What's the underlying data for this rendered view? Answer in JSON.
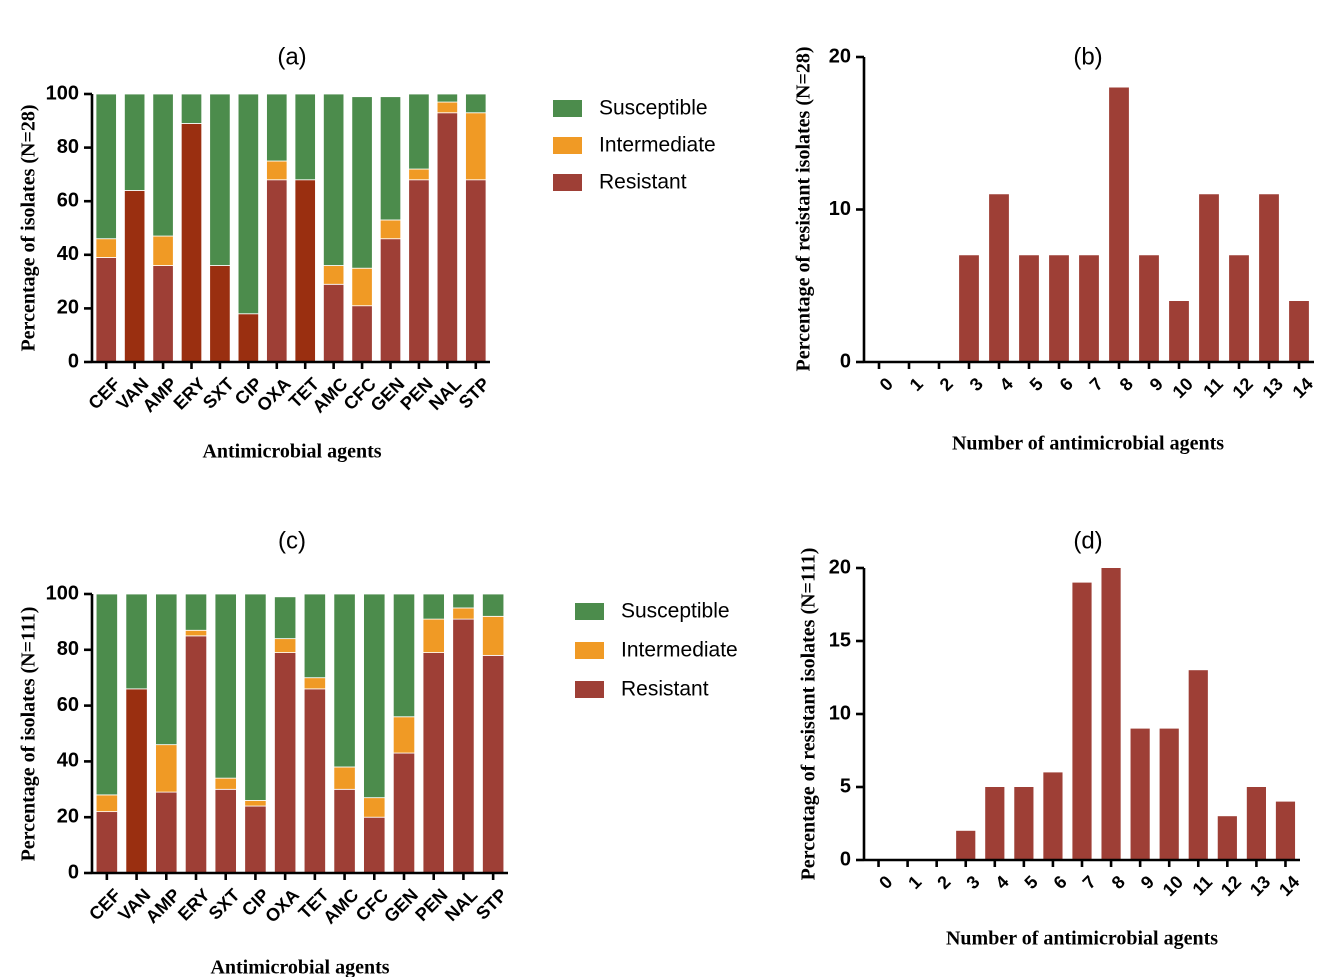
{
  "colors": {
    "susceptible": "#4c8c4c",
    "intermediate": "#f09a25",
    "resistant": "#9e3f36",
    "resistant_highlight": "#9a2f10"
  },
  "chart_data": [
    {
      "id": "a",
      "type": "bar",
      "stacked": true,
      "title": "(a)",
      "xlabel": "Antimicrobial agents",
      "ylabel": "Percentage of isolates (N=28)",
      "ylim": [
        0,
        100
      ],
      "yticks": [
        0,
        20,
        40,
        60,
        80,
        100
      ],
      "categories": [
        "CEF",
        "VAN",
        "AMP",
        "ERY",
        "SXT",
        "CIP",
        "OXA",
        "TET",
        "AMC",
        "CFC",
        "GEN",
        "PEN",
        "NAL",
        "STP"
      ],
      "highlight_categories": [
        "VAN",
        "ERY",
        "SXT",
        "CIP",
        "TET"
      ],
      "legend_position": "right",
      "series": [
        {
          "name": "Resistant",
          "color_key": "resistant",
          "values": [
            39,
            64,
            36,
            89,
            36,
            18,
            68,
            68,
            29,
            21,
            46,
            68,
            93,
            68
          ]
        },
        {
          "name": "Intermediate",
          "color_key": "intermediate",
          "values": [
            7,
            0,
            11,
            0,
            0,
            0,
            7,
            0,
            7,
            14,
            7,
            4,
            4,
            25
          ]
        },
        {
          "name": "Susceptible",
          "color_key": "susceptible",
          "values": [
            54,
            36,
            53,
            11,
            64,
            82,
            25,
            32,
            64,
            64,
            46,
            28,
            3,
            7
          ]
        }
      ],
      "legend": [
        "Susceptible",
        "Intermediate",
        "Resistant"
      ]
    },
    {
      "id": "b",
      "type": "bar",
      "title": "(b)",
      "xlabel": "Number of antimicrobial agents",
      "ylabel": "Percentage of resistant isolates (N=28)",
      "ylim": [
        0,
        20
      ],
      "yticks": [
        0,
        10,
        20
      ],
      "categories": [
        "0",
        "1",
        "2",
        "3",
        "4",
        "5",
        "6",
        "7",
        "8",
        "9",
        "10",
        "11",
        "12",
        "13",
        "14"
      ],
      "values": [
        0,
        0,
        0,
        7,
        11,
        7,
        7,
        7,
        18,
        7,
        4,
        11,
        7,
        11,
        4
      ]
    },
    {
      "id": "c",
      "type": "bar",
      "stacked": true,
      "title": "(c)",
      "xlabel": "Antimicrobial agents",
      "ylabel": "Percentage of isolates (N=111)",
      "ylim": [
        0,
        100
      ],
      "yticks": [
        0,
        20,
        40,
        60,
        80,
        100
      ],
      "categories": [
        "CEF",
        "VAN",
        "AMP",
        "ERY",
        "SXT",
        "CIP",
        "OXA",
        "TET",
        "AMC",
        "CFC",
        "GEN",
        "PEN",
        "NAL",
        "STP"
      ],
      "highlight_categories": [
        "VAN"
      ],
      "legend_position": "right",
      "series": [
        {
          "name": "Resistant",
          "color_key": "resistant",
          "values": [
            22,
            66,
            29,
            85,
            30,
            24,
            79,
            66,
            30,
            20,
            43,
            79,
            91,
            78
          ]
        },
        {
          "name": "Intermediate",
          "color_key": "intermediate",
          "values": [
            6,
            0,
            17,
            2,
            4,
            2,
            5,
            4,
            8,
            7,
            13,
            12,
            4,
            14
          ]
        },
        {
          "name": "Susceptible",
          "color_key": "susceptible",
          "values": [
            72,
            34,
            54,
            13,
            66,
            74,
            15,
            30,
            62,
            73,
            44,
            9,
            5,
            8
          ]
        }
      ],
      "legend": [
        "Susceptible",
        "Intermediate",
        "Resistant"
      ]
    },
    {
      "id": "d",
      "type": "bar",
      "title": "(d)",
      "xlabel": "Number of antimicrobial agents",
      "ylabel": "Percentage of resistant isolates (N=111)",
      "ylim": [
        0,
        20
      ],
      "yticks": [
        0,
        5,
        10,
        15,
        20
      ],
      "categories": [
        "0",
        "1",
        "2",
        "3",
        "4",
        "5",
        "6",
        "7",
        "8",
        "9",
        "10",
        "11",
        "12",
        "13",
        "14"
      ],
      "values": [
        0,
        0,
        0,
        2,
        5,
        5,
        6,
        19,
        20,
        9,
        9,
        13,
        3,
        5,
        4
      ]
    }
  ]
}
